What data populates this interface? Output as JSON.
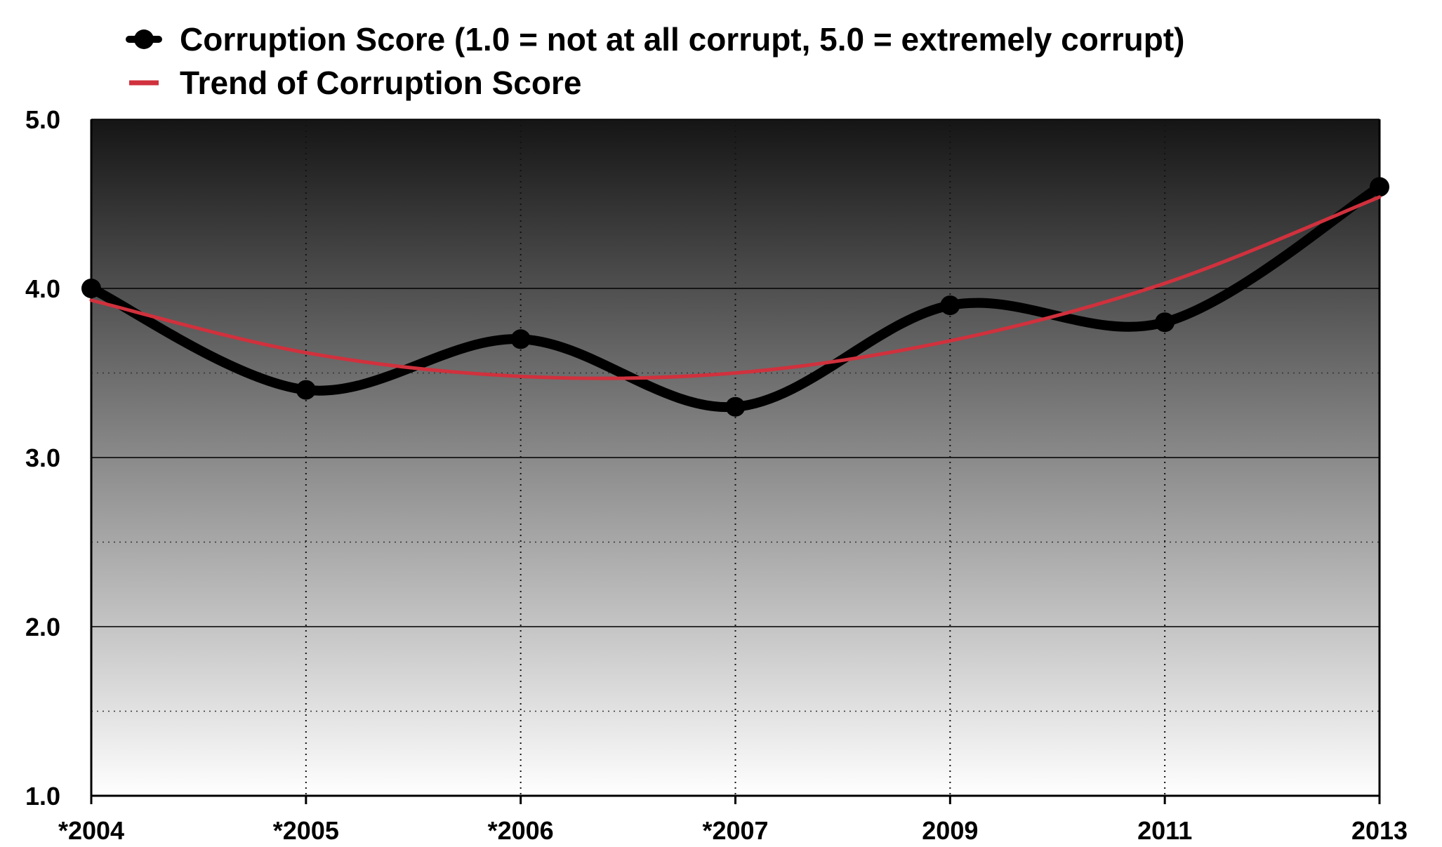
{
  "chart_data": {
    "type": "line",
    "title": "",
    "xlabel": "",
    "ylabel": "",
    "categories": [
      "*2004",
      "*2005",
      "*2006",
      "*2007",
      "2009",
      "2011",
      "2013"
    ],
    "ylim": [
      1.0,
      5.0
    ],
    "yticks": [
      "1.0",
      "2.0",
      "3.0",
      "4.0",
      "5.0"
    ],
    "grid": true,
    "legend_position": "top-left",
    "background": "vertical gradient dark-to-light",
    "series": [
      {
        "name": "Corruption Score (1.0 = not at all corrupt, 5.0 = extremely corrupt)",
        "values": [
          4.0,
          3.4,
          3.7,
          3.3,
          3.9,
          3.8,
          4.6
        ],
        "color": "#000000",
        "style": "smooth-line-with-markers"
      },
      {
        "name": "Trend of Corruption Score",
        "values": [
          3.93,
          3.62,
          3.48,
          3.5,
          3.69,
          4.03,
          4.54
        ],
        "color": "#d0313d",
        "style": "trend-line"
      }
    ]
  }
}
